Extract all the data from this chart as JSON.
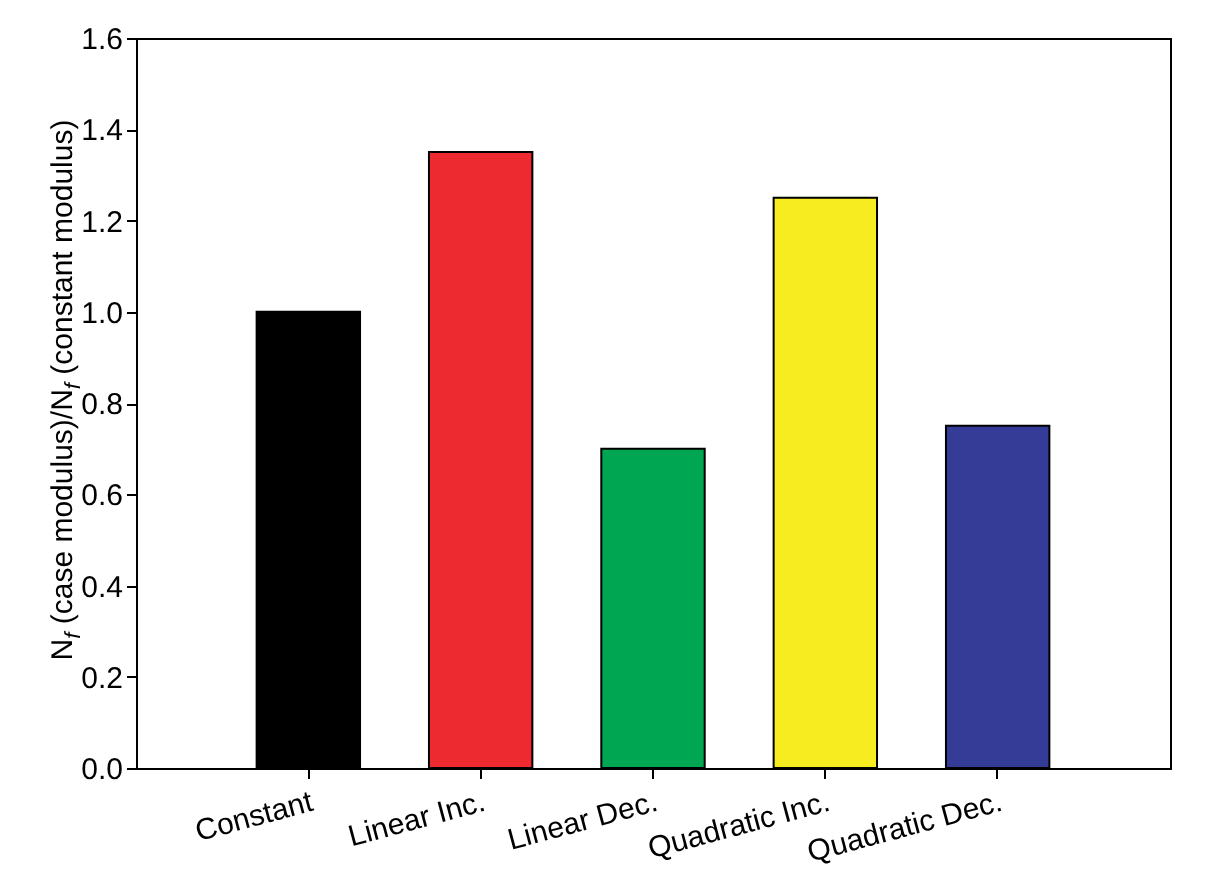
{
  "chart_data": {
    "type": "bar",
    "ylabel": "N$_{f}$ (case modulus)/N$_{f}$ (constant modulus)",
    "categories": [
      "Constant",
      "Linear Inc.",
      "Linear Dec.",
      "Quadratic Inc.",
      "Quadratic Dec."
    ],
    "values": [
      1.0,
      1.35,
      0.7,
      1.25,
      0.75
    ],
    "colors": [
      "#000000",
      "#ec2a2f",
      "#00a651",
      "#f7ec20",
      "#353c97"
    ],
    "ylim": [
      0,
      1.6
    ],
    "yticks": [
      {
        "value": 0,
        "label": "0.0"
      },
      {
        "value": 0.2,
        "label": "0.2"
      },
      {
        "value": 0.4,
        "label": "0.4"
      },
      {
        "value": 0.6,
        "label": "0.6"
      },
      {
        "value": 0.8,
        "label": "0.8"
      },
      {
        "value": 1,
        "label": "1.0"
      },
      {
        "value": 1.2,
        "label": "1.2"
      },
      {
        "value": 1.4,
        "label": "1.4"
      },
      {
        "value": 1.6,
        "label": "1.6"
      }
    ],
    "grid": false
  }
}
